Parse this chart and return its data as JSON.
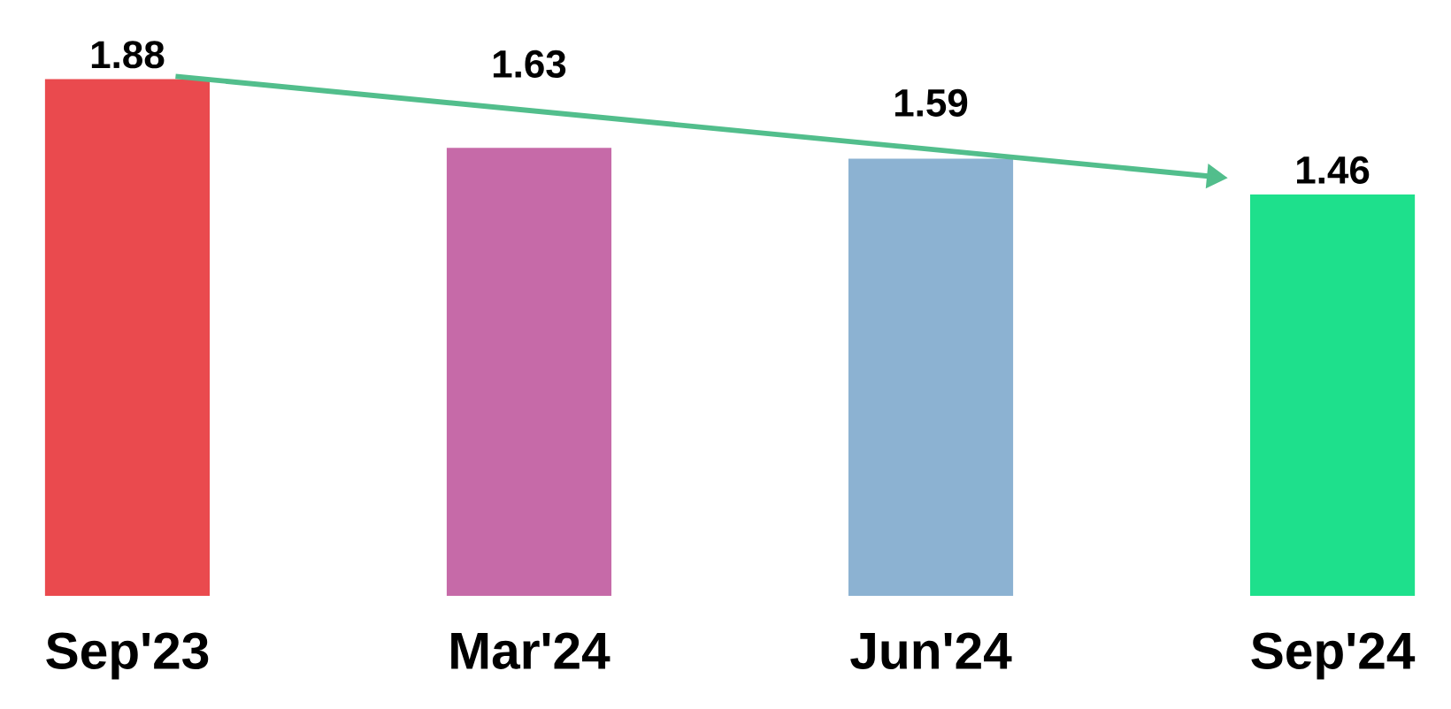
{
  "chart_data": {
    "type": "bar",
    "categories": [
      "Sep'23",
      "Mar'24",
      "Jun'24",
      "Sep'24"
    ],
    "values": [
      1.88,
      1.63,
      1.59,
      1.46
    ],
    "colors": [
      "#ea4a4e",
      "#c66aa8",
      "#8cb2d2",
      "#1ee08c"
    ],
    "data_labels": true
  }
}
